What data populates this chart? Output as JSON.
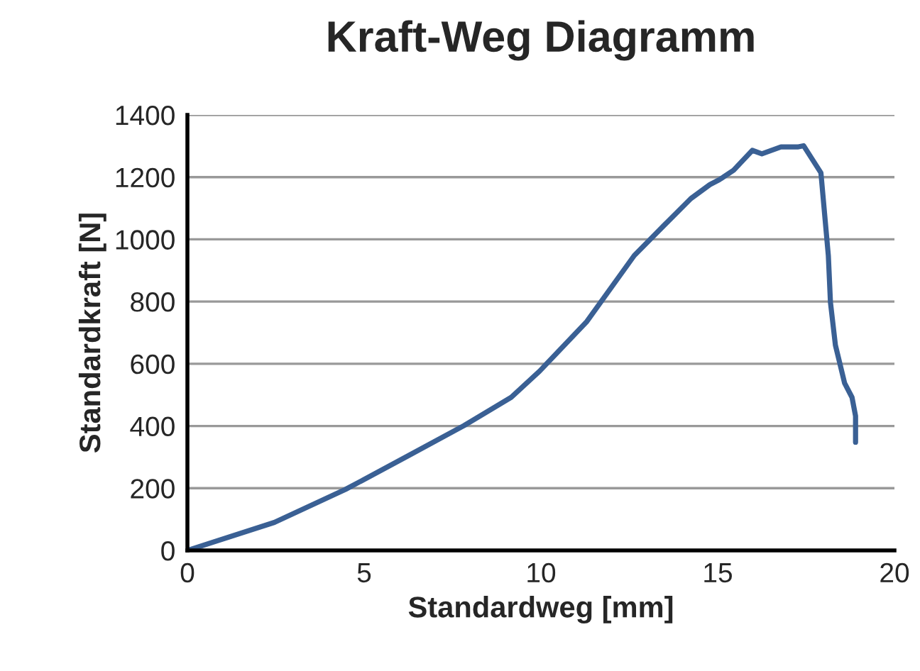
{
  "chart_data": {
    "type": "line",
    "title": "Kraft-Weg Diagramm",
    "xlabel": "Standardweg [mm]",
    "ylabel": "Standardkraft [N]",
    "xlim": [
      0,
      20
    ],
    "xticks": [
      0,
      5,
      10,
      15,
      20
    ],
    "ylim": [
      0,
      1400
    ],
    "yticks": [
      0,
      200,
      400,
      600,
      800,
      1000,
      1200,
      1400
    ],
    "grid": "y",
    "series": [
      {
        "color": "#3a6094",
        "x": [
          0,
          2.46,
          4.47,
          6.21,
          7.82,
          9.16,
          9.96,
          11.3,
          12.64,
          13.44,
          14.24,
          14.78,
          15.05,
          15.45,
          15.98,
          16.25,
          16.79,
          17.26,
          17.43,
          17.92,
          18.13,
          18.19,
          18.33,
          18.59,
          18.8,
          18.9,
          18.9
        ],
        "values": [
          0,
          90,
          196,
          302,
          401,
          492,
          576,
          736,
          948,
          1040,
          1131,
          1176,
          1192,
          1222,
          1286,
          1275,
          1297,
          1297,
          1301,
          1214,
          948,
          797,
          660,
          538,
          492,
          432,
          348
        ]
      }
    ]
  }
}
